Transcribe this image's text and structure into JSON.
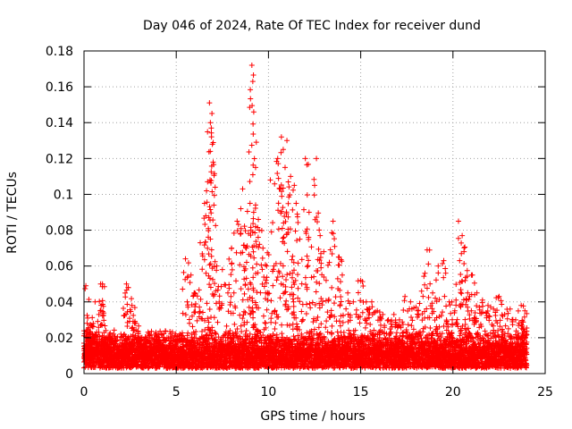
{
  "chart_data": {
    "type": "scatter",
    "title": "Day 046 of 2024, Rate Of TEC Index for receiver dund",
    "xlabel": "GPS time / hours",
    "ylabel": "ROTI / TECUs",
    "xlim": [
      0,
      25
    ],
    "ylim": [
      0,
      0.18
    ],
    "xticks": [
      0,
      5,
      10,
      15,
      20,
      25
    ],
    "xtick_labels": [
      "0",
      "5",
      "10",
      "15",
      "20",
      "25"
    ],
    "yticks": [
      0,
      0.02,
      0.04,
      0.06,
      0.08,
      0.1,
      0.12,
      0.14,
      0.16,
      0.18
    ],
    "ytick_labels": [
      "0",
      "0.02",
      "0.04",
      "0.06",
      "0.08",
      "0.1",
      "0.12",
      "0.14",
      "0.16",
      "0.18"
    ],
    "grid": true,
    "marker": "+",
    "marker_color": "#ff0000",
    "series": [
      {
        "x": [
          0.1,
          0.2,
          0.3,
          0.5,
          0.6,
          0.9,
          1.0,
          1.2,
          1.5,
          2.0,
          2.3,
          2.4,
          2.6,
          2.8,
          3.0,
          3.3,
          3.6,
          3.9,
          4.2,
          4.5,
          4.8,
          5.2,
          5.5,
          5.8,
          6.0,
          6.3,
          6.6,
          6.7,
          6.8,
          6.85,
          6.9,
          7.0,
          7.2,
          7.5,
          7.8,
          8.0,
          8.3,
          8.5,
          8.6,
          8.8,
          9.0,
          9.1,
          9.15,
          9.2,
          9.3,
          9.5,
          9.7,
          9.9,
          10.1,
          10.3,
          10.5,
          10.7,
          10.8,
          10.9,
          11.0,
          11.2,
          11.4,
          11.5,
          11.7,
          12.0,
          12.2,
          12.5,
          12.6,
          12.8,
          13.0,
          13.3,
          13.5,
          13.8,
          14.0,
          14.3,
          14.6,
          15.0,
          15.3,
          15.6,
          15.9,
          16.2,
          16.5,
          16.8,
          17.1,
          17.4,
          17.7,
          18.0,
          18.3,
          18.6,
          18.9,
          19.2,
          19.5,
          19.8,
          20.1,
          20.3,
          20.5,
          20.6,
          20.8,
          21.0,
          21.3,
          21.6,
          21.9,
          22.2,
          22.5,
          22.8,
          23.1,
          23.4,
          23.7,
          23.9
        ],
        "y": [
          0.049,
          0.031,
          0.022,
          0.028,
          0.04,
          0.05,
          0.05,
          0.02,
          0.018,
          0.022,
          0.05,
          0.048,
          0.038,
          0.028,
          0.02,
          0.018,
          0.017,
          0.023,
          0.022,
          0.02,
          0.018,
          0.022,
          0.064,
          0.055,
          0.045,
          0.073,
          0.088,
          0.107,
          0.151,
          0.14,
          0.137,
          0.118,
          0.06,
          0.058,
          0.045,
          0.07,
          0.085,
          0.092,
          0.103,
          0.07,
          0.095,
          0.172,
          0.163,
          0.146,
          0.115,
          0.08,
          0.07,
          0.06,
          0.108,
          0.06,
          0.12,
          0.132,
          0.125,
          0.115,
          0.13,
          0.11,
          0.105,
          0.095,
          0.075,
          0.12,
          0.09,
          0.105,
          0.12,
          0.077,
          0.068,
          0.062,
          0.085,
          0.065,
          0.055,
          0.045,
          0.04,
          0.052,
          0.04,
          0.04,
          0.035,
          0.033,
          0.03,
          0.033,
          0.03,
          0.043,
          0.04,
          0.037,
          0.046,
          0.069,
          0.045,
          0.06,
          0.063,
          0.04,
          0.035,
          0.085,
          0.077,
          0.068,
          0.045,
          0.055,
          0.045,
          0.041,
          0.038,
          0.036,
          0.043,
          0.033,
          0.036,
          0.03,
          0.038,
          0.035
        ]
      }
    ],
    "baseline": {
      "x_start": 0.0,
      "x_end": 24.0,
      "x_step": 0.0167,
      "y_min": 0.003,
      "y_typical_low": 0.008,
      "y_typical_high": 0.025
    }
  }
}
